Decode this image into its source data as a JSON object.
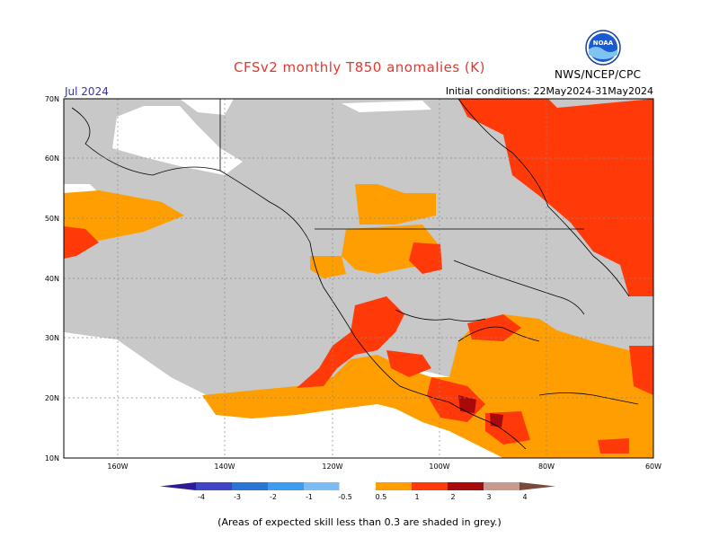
{
  "title": "CFSv2 monthly T850 anomalies (K)",
  "month": "Jul 2024",
  "initial_conditions": "Initial conditions: 22May2024-31May2024",
  "agency": "NWS/NCEP/CPC",
  "logo_text": "NOAA",
  "footnote": "(Areas of expected skill less than 0.3 are shaded in grey.)",
  "map": {
    "lat_labels": [
      "70N",
      "60N",
      "50N",
      "40N",
      "30N",
      "20N",
      "10N"
    ],
    "lon_labels": [
      "160W",
      "140W",
      "120W",
      "100W",
      "80W",
      "60W"
    ],
    "lat_range": [
      10,
      70
    ],
    "lon_range": [
      -170,
      -60
    ]
  },
  "legend": {
    "labels": [
      "-4",
      "-3",
      "-2",
      "-1",
      "-0.5",
      "0.5",
      "1",
      "2",
      "3",
      "4"
    ],
    "colors": [
      "#2c1b93",
      "#3e43c7",
      "#2a74d4",
      "#3f9bef",
      "#7dbcf3",
      "#ffffff",
      "#ff9e00",
      "#ff3a08",
      "#a60a0a",
      "#c89a8e",
      "#7a4a3c"
    ]
  },
  "palette": {
    "grey": "#c8c8c8",
    "orange": "#ff9e00",
    "red": "#ff3a08",
    "darkred": "#a60a0a",
    "title": "#e8352d"
  }
}
